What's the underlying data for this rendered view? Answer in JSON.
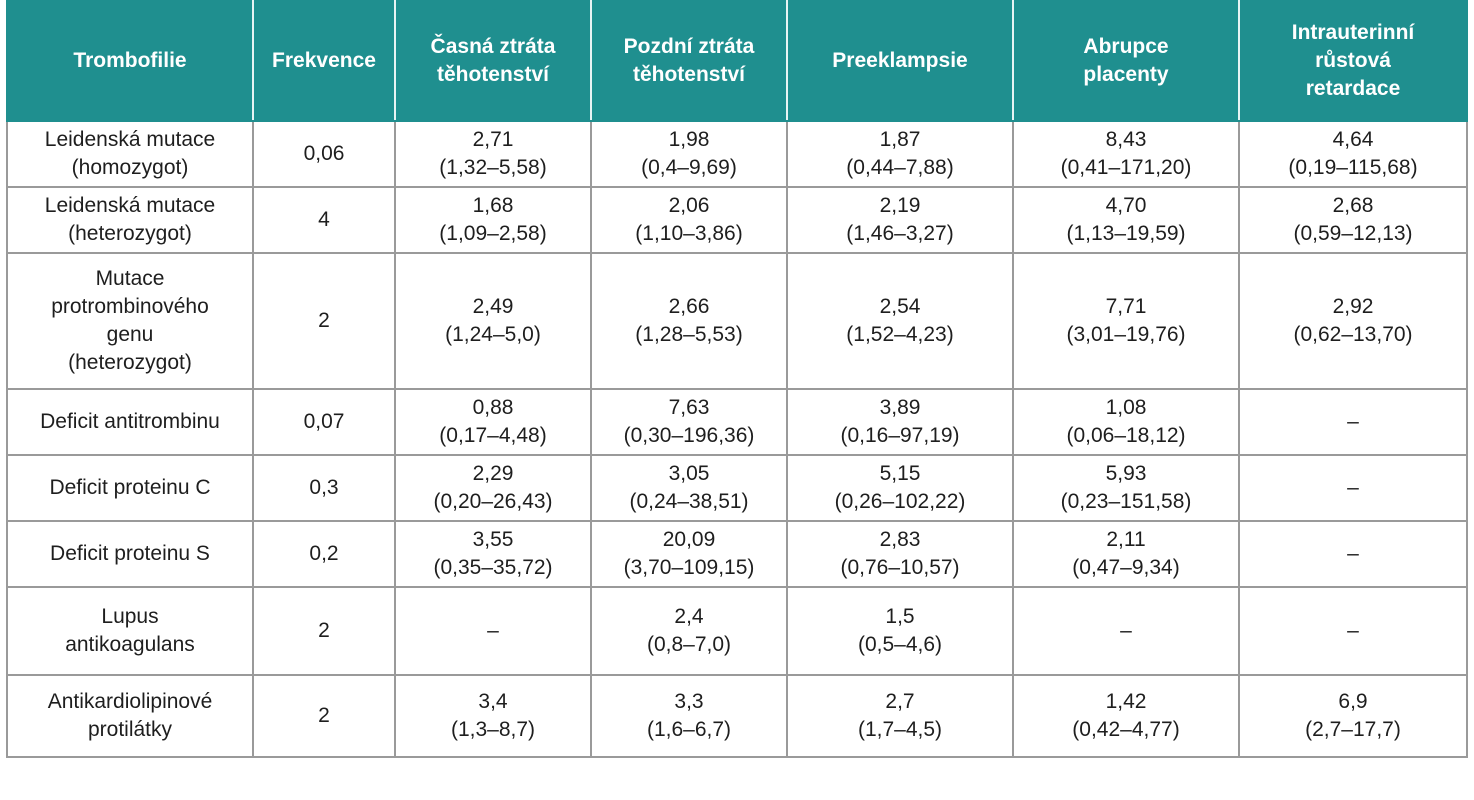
{
  "headers": [
    [
      "Trombofilie"
    ],
    [
      "Frekvence"
    ],
    [
      "Časná ztráta",
      "těhotenství"
    ],
    [
      "Pozdní ztráta",
      "těhotenství"
    ],
    [
      "Preeklampsie"
    ],
    [
      "Abrupce",
      "placenty"
    ],
    [
      "Intrauterinní",
      "růstová",
      "retardace"
    ]
  ],
  "rows": [
    [
      [
        "Leidenská mutace",
        "(homozygot)"
      ],
      [
        "0,06"
      ],
      [
        "2,71",
        "(1,32–5,58)"
      ],
      [
        "1,98",
        "(0,4–9,69)"
      ],
      [
        "1,87",
        "(0,44–7,88)"
      ],
      [
        "8,43",
        "(0,41–171,20)"
      ],
      [
        "4,64",
        "(0,19–115,68)"
      ]
    ],
    [
      [
        "Leidenská mutace",
        "(heterozygot)"
      ],
      [
        "4"
      ],
      [
        "1,68",
        "(1,09–2,58)"
      ],
      [
        "2,06",
        "(1,10–3,86)"
      ],
      [
        "2,19",
        "(1,46–3,27)"
      ],
      [
        "4,70",
        "(1,13–19,59)"
      ],
      [
        "2,68",
        "(0,59–12,13)"
      ]
    ],
    [
      [
        "Mutace",
        "protrombinového",
        "genu",
        "(heterozygot)"
      ],
      [
        "2"
      ],
      [
        "2,49",
        "(1,24–5,0)"
      ],
      [
        "2,66",
        "(1,28–5,53)"
      ],
      [
        "2,54",
        "(1,52–4,23)"
      ],
      [
        "7,71",
        "(3,01–19,76)"
      ],
      [
        "2,92",
        "(0,62–13,70)"
      ]
    ],
    [
      [
        "Deficit antitrombinu"
      ],
      [
        "0,07"
      ],
      [
        "0,88",
        "(0,17–4,48)"
      ],
      [
        "7,63",
        "(0,30–196,36)"
      ],
      [
        "3,89",
        "(0,16–97,19)"
      ],
      [
        "1,08",
        "(0,06–18,12)"
      ],
      [
        "–"
      ]
    ],
    [
      [
        "Deficit proteinu C"
      ],
      [
        "0,3"
      ],
      [
        "2,29",
        "(0,20–26,43)"
      ],
      [
        "3,05",
        "(0,24–38,51)"
      ],
      [
        "5,15",
        "(0,26–102,22)"
      ],
      [
        "5,93",
        "(0,23–151,58)"
      ],
      [
        "–"
      ]
    ],
    [
      [
        "Deficit proteinu S"
      ],
      [
        "0,2"
      ],
      [
        "3,55",
        "(0,35–35,72)"
      ],
      [
        "20,09",
        "(3,70–109,15)"
      ],
      [
        "2,83",
        "(0,76–10,57)"
      ],
      [
        "2,11",
        "(0,47–9,34)"
      ],
      [
        "–"
      ]
    ],
    [
      [
        "Lupus",
        "antikoagulans"
      ],
      [
        "2"
      ],
      [
        "–"
      ],
      [
        "2,4",
        "(0,8–7,0)"
      ],
      [
        "1,5",
        "(0,5–4,6)"
      ],
      [
        "–"
      ],
      [
        "–"
      ]
    ],
    [
      [
        "Antikardiolipinové",
        "protilátky"
      ],
      [
        "2"
      ],
      [
        "3,4",
        "(1,3–8,7)"
      ],
      [
        "3,3",
        "(1,6–6,7)"
      ],
      [
        "2,7",
        "(1,7–4,5)"
      ],
      [
        "1,42",
        "(0,42–4,77)"
      ],
      [
        "6,9",
        "(2,7–17,7)"
      ]
    ]
  ],
  "theme": {
    "header_bg": "#1f8f8f",
    "header_text": "#ffffff",
    "border": "#9a9a9a"
  }
}
